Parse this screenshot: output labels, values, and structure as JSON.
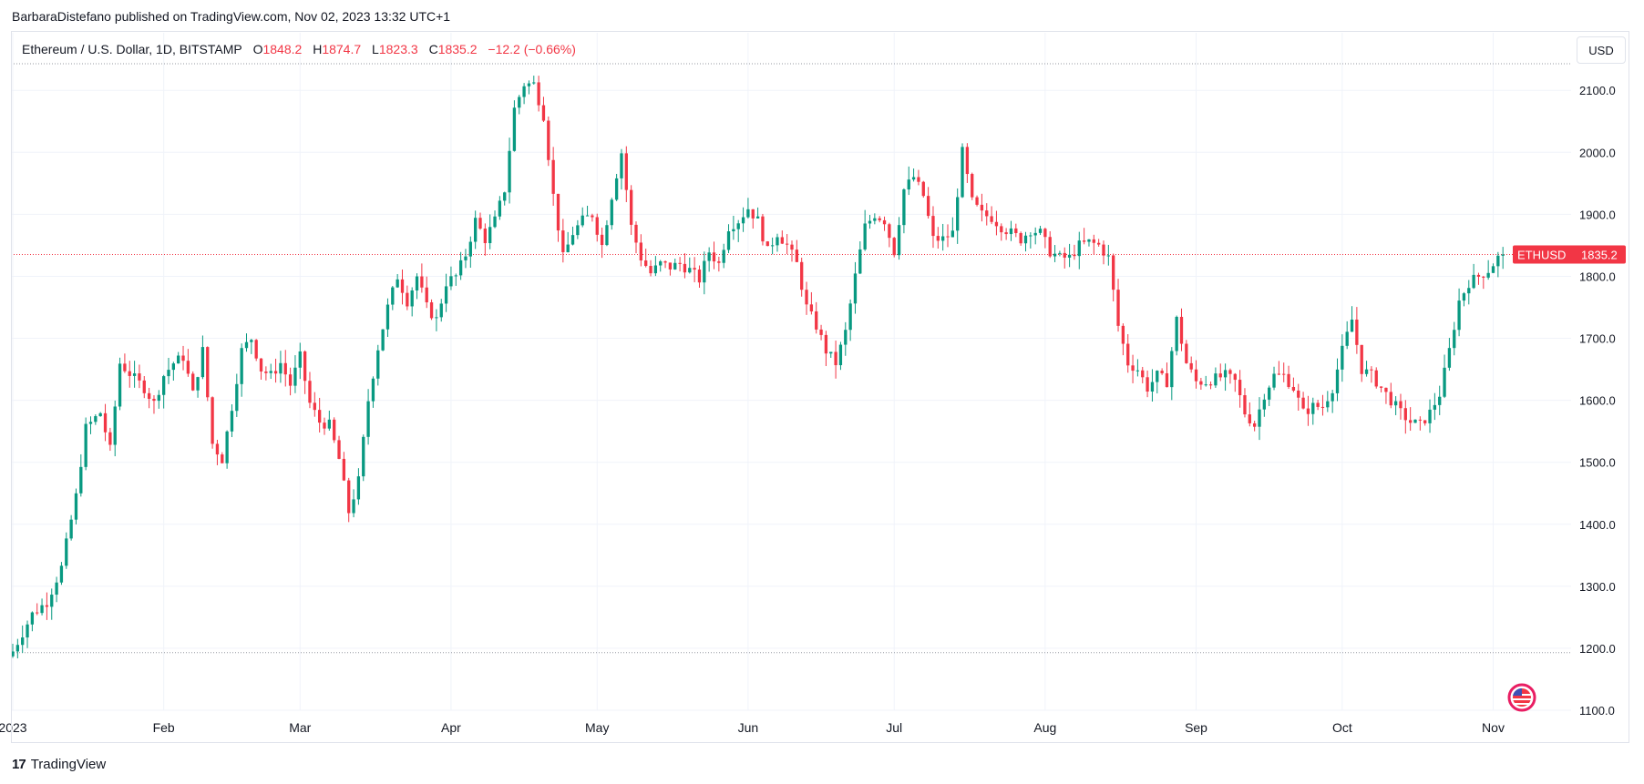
{
  "attribution": "BarbaraDistefano published on TradingView.com, Nov 02, 2023 13:32 UTC+1",
  "legend": {
    "symbol": "Ethereum / U.S. Dollar, 1D, BITSTAMP",
    "open_label": "O",
    "open": "1848.2",
    "high_label": "H",
    "high": "1874.7",
    "low_label": "L",
    "low": "1823.3",
    "close_label": "C",
    "close": "1835.2",
    "change": "−12.2 (−0.66%)"
  },
  "currency_button": "USD",
  "price_badge": {
    "ticker": "ETHUSD",
    "price": "1835.2"
  },
  "footer": {
    "brand": "TradingView",
    "logo_glyph": "17"
  },
  "colors": {
    "up": "#089981",
    "down": "#f23645",
    "grid": "#f0f3fa",
    "text": "#131722"
  },
  "chart_data": {
    "type": "candlestick",
    "y_ticks": [
      "2100.0",
      "2000.0",
      "1900.0",
      "1800.0",
      "1700.0",
      "1600.0",
      "1500.0",
      "1400.0",
      "1300.0",
      "1200.0",
      "1100.0"
    ],
    "y_range": [
      1100,
      2140
    ],
    "x_ticks": [
      {
        "label": "2023",
        "x": 0
      },
      {
        "label": "Feb",
        "x": 31
      },
      {
        "label": "Mar",
        "x": 59
      },
      {
        "label": "Apr",
        "x": 90
      },
      {
        "label": "May",
        "x": 120
      },
      {
        "label": "Jun",
        "x": 151
      },
      {
        "label": "Jul",
        "x": 181
      },
      {
        "label": "Aug",
        "x": 212
      },
      {
        "label": "Sep",
        "x": 243
      },
      {
        "label": "Oct",
        "x": 273
      },
      {
        "label": "Nov",
        "x": 304
      }
    ],
    "x_range": [
      0,
      320
    ],
    "reference_lines": [
      2143,
      1193
    ],
    "current_price": 1835.2,
    "anchors": [
      [
        0,
        1195
      ],
      [
        4,
        1255
      ],
      [
        7,
        1275
      ],
      [
        10,
        1330
      ],
      [
        13,
        1445
      ],
      [
        15,
        1555
      ],
      [
        18,
        1580
      ],
      [
        20,
        1520
      ],
      [
        22,
        1660
      ],
      [
        25,
        1635
      ],
      [
        27,
        1620
      ],
      [
        29,
        1595
      ],
      [
        31,
        1640
      ],
      [
        33,
        1660
      ],
      [
        35,
        1670
      ],
      [
        37,
        1610
      ],
      [
        39,
        1680
      ],
      [
        41,
        1530
      ],
      [
        43,
        1505
      ],
      [
        45,
        1590
      ],
      [
        47,
        1680
      ],
      [
        49,
        1700
      ],
      [
        51,
        1650
      ],
      [
        53,
        1640
      ],
      [
        55,
        1660
      ],
      [
        57,
        1625
      ],
      [
        59,
        1670
      ],
      [
        61,
        1595
      ],
      [
        63,
        1565
      ],
      [
        65,
        1560
      ],
      [
        67,
        1505
      ],
      [
        69,
        1420
      ],
      [
        71,
        1470
      ],
      [
        73,
        1600
      ],
      [
        75,
        1685
      ],
      [
        77,
        1750
      ],
      [
        79,
        1800
      ],
      [
        81,
        1760
      ],
      [
        83,
        1800
      ],
      [
        85,
        1750
      ],
      [
        87,
        1730
      ],
      [
        89,
        1790
      ],
      [
        91,
        1800
      ],
      [
        93,
        1835
      ],
      [
        95,
        1890
      ],
      [
        97,
        1860
      ],
      [
        99,
        1890
      ],
      [
        101,
        1940
      ],
      [
        103,
        2070
      ],
      [
        105,
        2110
      ],
      [
        107,
        2110
      ],
      [
        109,
        2060
      ],
      [
        111,
        1930
      ],
      [
        113,
        1830
      ],
      [
        115,
        1870
      ],
      [
        117,
        1890
      ],
      [
        119,
        1900
      ],
      [
        121,
        1850
      ],
      [
        123,
        1930
      ],
      [
        125,
        2000
      ],
      [
        127,
        1880
      ],
      [
        129,
        1830
      ],
      [
        131,
        1805
      ],
      [
        133,
        1820
      ],
      [
        135,
        1815
      ],
      [
        137,
        1820
      ],
      [
        139,
        1810
      ],
      [
        141,
        1795
      ],
      [
        143,
        1840
      ],
      [
        145,
        1820
      ],
      [
        147,
        1880
      ],
      [
        149,
        1890
      ],
      [
        151,
        1910
      ],
      [
        153,
        1890
      ],
      [
        155,
        1840
      ],
      [
        157,
        1870
      ],
      [
        159,
        1850
      ],
      [
        161,
        1820
      ],
      [
        163,
        1750
      ],
      [
        165,
        1720
      ],
      [
        167,
        1680
      ],
      [
        169,
        1660
      ],
      [
        171,
        1710
      ],
      [
        173,
        1800
      ],
      [
        175,
        1880
      ],
      [
        177,
        1900
      ],
      [
        179,
        1890
      ],
      [
        181,
        1840
      ],
      [
        183,
        1940
      ],
      [
        185,
        1960
      ],
      [
        187,
        1930
      ],
      [
        189,
        1860
      ],
      [
        191,
        1860
      ],
      [
        193,
        1870
      ],
      [
        195,
        2000
      ],
      [
        197,
        1920
      ],
      [
        199,
        1900
      ],
      [
        201,
        1895
      ],
      [
        203,
        1880
      ],
      [
        205,
        1870
      ],
      [
        207,
        1860
      ],
      [
        209,
        1875
      ],
      [
        211,
        1870
      ],
      [
        213,
        1840
      ],
      [
        215,
        1830
      ],
      [
        217,
        1830
      ],
      [
        219,
        1850
      ],
      [
        221,
        1855
      ],
      [
        223,
        1850
      ],
      [
        225,
        1830
      ],
      [
        227,
        1720
      ],
      [
        229,
        1660
      ],
      [
        231,
        1650
      ],
      [
        233,
        1620
      ],
      [
        235,
        1640
      ],
      [
        237,
        1630
      ],
      [
        239,
        1730
      ],
      [
        241,
        1660
      ],
      [
        243,
        1630
      ],
      [
        245,
        1630
      ],
      [
        247,
        1635
      ],
      [
        249,
        1640
      ],
      [
        251,
        1630
      ],
      [
        253,
        1580
      ],
      [
        255,
        1560
      ],
      [
        257,
        1610
      ],
      [
        259,
        1640
      ],
      [
        261,
        1640
      ],
      [
        263,
        1620
      ],
      [
        265,
        1580
      ],
      [
        267,
        1590
      ],
      [
        269,
        1590
      ],
      [
        271,
        1620
      ],
      [
        273,
        1680
      ],
      [
        275,
        1730
      ],
      [
        277,
        1650
      ],
      [
        279,
        1640
      ],
      [
        281,
        1620
      ],
      [
        283,
        1600
      ],
      [
        285,
        1580
      ],
      [
        287,
        1565
      ],
      [
        289,
        1560
      ],
      [
        291,
        1580
      ],
      [
        293,
        1610
      ],
      [
        295,
        1680
      ],
      [
        297,
        1760
      ],
      [
        299,
        1790
      ],
      [
        301,
        1800
      ],
      [
        303,
        1810
      ],
      [
        305,
        1830
      ],
      [
        306,
        1835
      ]
    ]
  }
}
